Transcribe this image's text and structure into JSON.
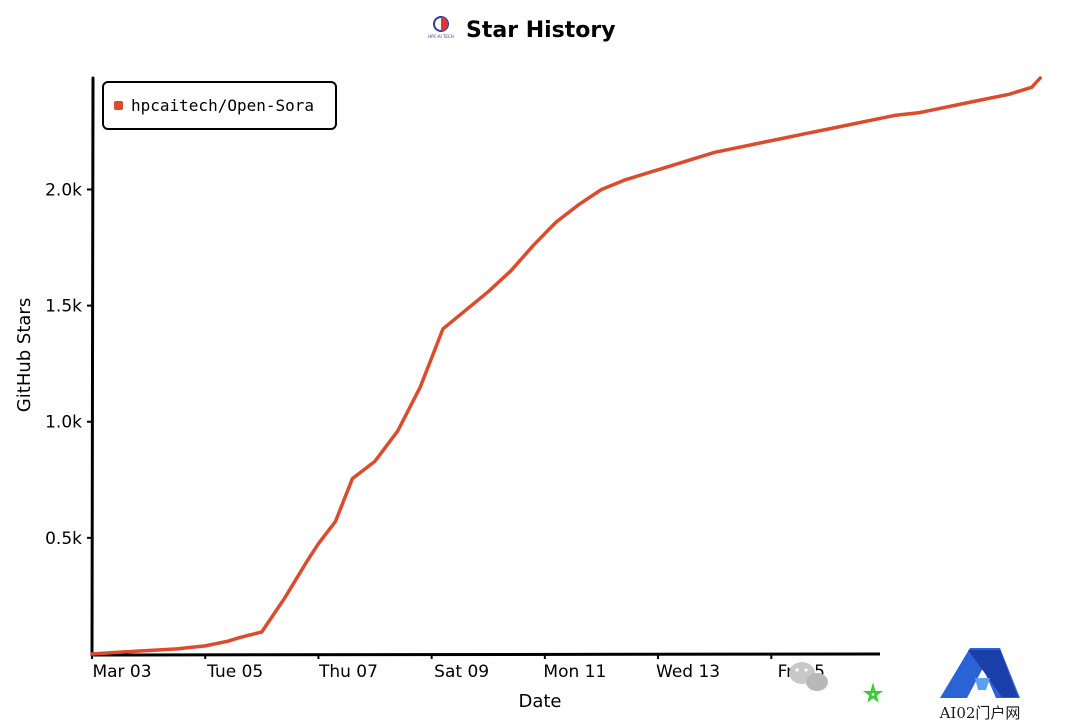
{
  "chart_data": {
    "type": "line",
    "title": "Star History",
    "xlabel": "Date",
    "ylabel": "GitHub Stars",
    "x_ticks": [
      "Mar 03",
      "Tue 05",
      "Thu 07",
      "Sat 09",
      "Mon 11",
      "Wed 13",
      "Fri 15"
    ],
    "y_ticks": [
      {
        "value": 500,
        "label": "0.5k"
      },
      {
        "value": 1000,
        "label": "1.0k"
      },
      {
        "value": 1500,
        "label": "1.5k"
      },
      {
        "value": 2000,
        "label": "2.0k"
      }
    ],
    "xlim": [
      0,
      16.8
    ],
    "ylim": [
      0,
      2480
    ],
    "grid": false,
    "legend_position": "top-left",
    "series": [
      {
        "name": "hpcaitech/Open-Sora",
        "color": "#dd4b2c",
        "x": [
          0,
          0.5,
          1,
          1.5,
          2,
          2.4,
          2.6,
          3,
          3.4,
          3.8,
          4,
          4.3,
          4.6,
          5,
          5.4,
          5.8,
          6.2,
          6.6,
          7,
          7.4,
          7.8,
          8.2,
          8.6,
          9,
          9.4,
          9.8,
          10.2,
          10.6,
          11,
          11.4,
          11.8,
          12.2,
          12.6,
          13,
          13.4,
          13.8,
          14.2,
          14.6,
          15,
          15.4,
          15.8,
          16.2,
          16.6,
          16.75
        ],
        "y": [
          0,
          8,
          15,
          22,
          35,
          55,
          70,
          95,
          240,
          400,
          475,
          570,
          755,
          830,
          960,
          1150,
          1400,
          1480,
          1560,
          1650,
          1760,
          1860,
          1935,
          2000,
          2040,
          2070,
          2100,
          2130,
          2160,
          2180,
          2200,
          2220,
          2240,
          2260,
          2280,
          2300,
          2320,
          2330,
          2350,
          2370,
          2390,
          2410,
          2440,
          2480
        ]
      }
    ]
  },
  "header": {
    "logo_label": "HPC-AI TECH"
  },
  "watermark": {
    "site_text": "AI02门户网"
  }
}
